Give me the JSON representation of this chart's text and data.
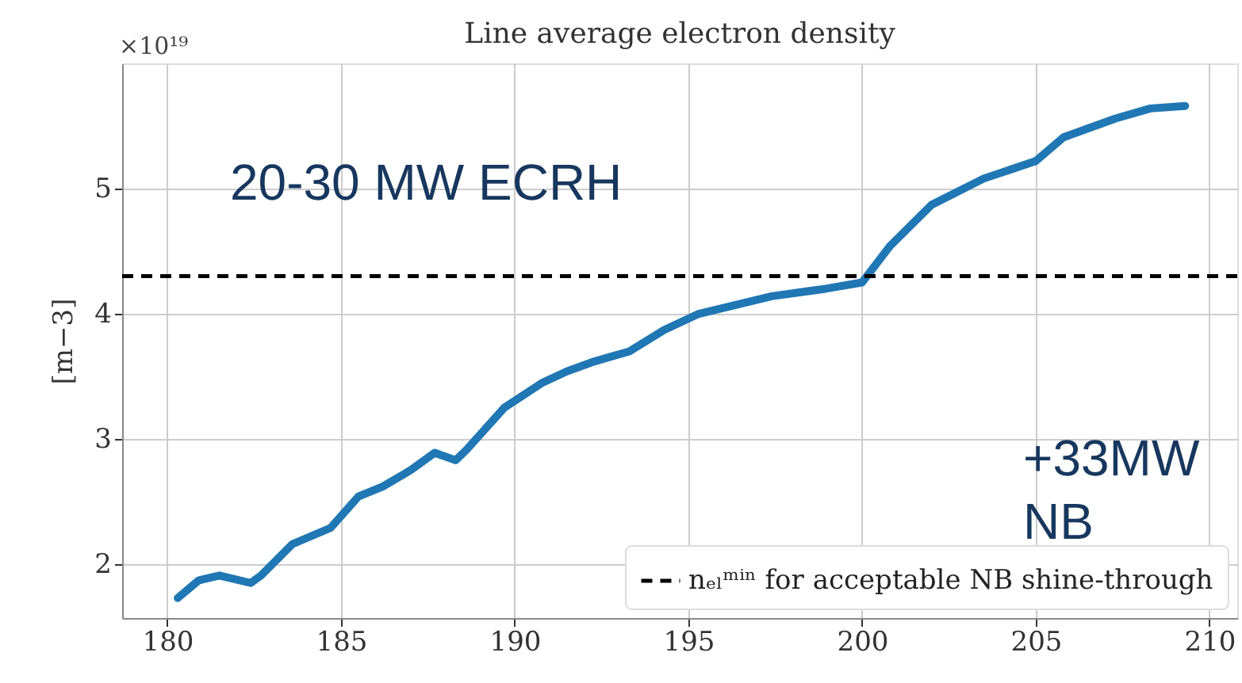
{
  "chart_data": {
    "type": "line",
    "title": "Line average electron density",
    "ylabel": "[m−3]",
    "xlim": [
      178.7,
      210.8
    ],
    "xticks": [
      180,
      185,
      190,
      195,
      200,
      205,
      210
    ],
    "ylim": [
      1.57,
      6.0
    ],
    "yticks": [
      2,
      3,
      4,
      5
    ],
    "grid": true,
    "legend": "bottom right",
    "annotations": [
      "×10¹⁹",
      "20-30 MW ECRH",
      "+33MW\nNB"
    ],
    "ref_lines": [
      {
        "axis": "y",
        "value": 4.3,
        "label": "nₑₗᵐⁱⁿ for acceptable NB shine-through",
        "color": "#000000",
        "line_style": "dashed"
      }
    ],
    "series": [
      {
        "color": "#1f77b4",
        "x": [
          180.3,
          180.9,
          181.5,
          182.4,
          182.7,
          183.6,
          184.7,
          185.5,
          186.2,
          187.0,
          187.7,
          188.3,
          188.6,
          189.7,
          190.8,
          191.5,
          192.3,
          193.3,
          194.3,
          195.3,
          197.4,
          198.95,
          200.0,
          200.8,
          202.0,
          203.5,
          205.0,
          205.8,
          207.3,
          208.3,
          209.3
        ],
        "values": [
          1.73,
          1.87,
          1.91,
          1.85,
          1.91,
          2.16,
          2.29,
          2.54,
          2.62,
          2.75,
          2.89,
          2.83,
          2.91,
          3.25,
          3.45,
          3.54,
          3.62,
          3.7,
          3.87,
          4.0,
          4.14,
          4.2,
          4.25,
          4.54,
          4.87,
          5.08,
          5.22,
          5.41,
          5.56,
          5.64,
          5.66
        ]
      }
    ]
  }
}
